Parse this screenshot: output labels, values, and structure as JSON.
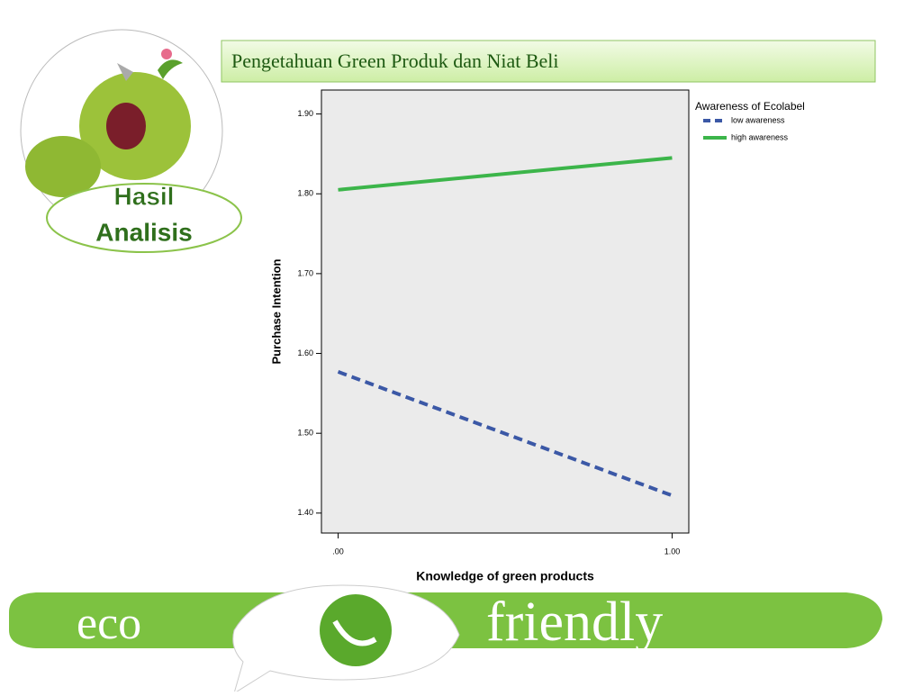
{
  "header": {
    "title": "Pengetahuan Green Produk  dan Niat Beli"
  },
  "badge": {
    "lines": [
      "Hasil",
      "Analisis"
    ]
  },
  "banner": {
    "left": "eco",
    "right": "friendly"
  },
  "chart_data": {
    "type": "line",
    "x_label": "Knowledge of green products",
    "y_label": "Purchase Intention",
    "legend_title": "Awareness of Ecolabel",
    "legend": "top-right-outside",
    "grid": false,
    "x": [
      0,
      1
    ],
    "xlim": [
      -0.05,
      1.05
    ],
    "xticks": [
      {
        "value": 0,
        "label": ".00"
      },
      {
        "value": 1,
        "label": "1.00"
      }
    ],
    "ylim": [
      1.375,
      1.93
    ],
    "yticks": [
      {
        "value": 1.4,
        "label": "1.40"
      },
      {
        "value": 1.5,
        "label": "1.50"
      },
      {
        "value": 1.6,
        "label": "1.60"
      },
      {
        "value": 1.7,
        "label": "1.70"
      },
      {
        "value": 1.8,
        "label": "1.80"
      },
      {
        "value": 1.9,
        "label": "1.90"
      }
    ],
    "series": [
      {
        "name": "low awareness",
        "color": "#3b58a6",
        "dashed": true,
        "values": [
          1.577,
          1.422
        ]
      },
      {
        "name": "high awareness",
        "color": "#3cb54a",
        "dashed": false,
        "values": [
          1.805,
          1.845
        ]
      }
    ]
  }
}
